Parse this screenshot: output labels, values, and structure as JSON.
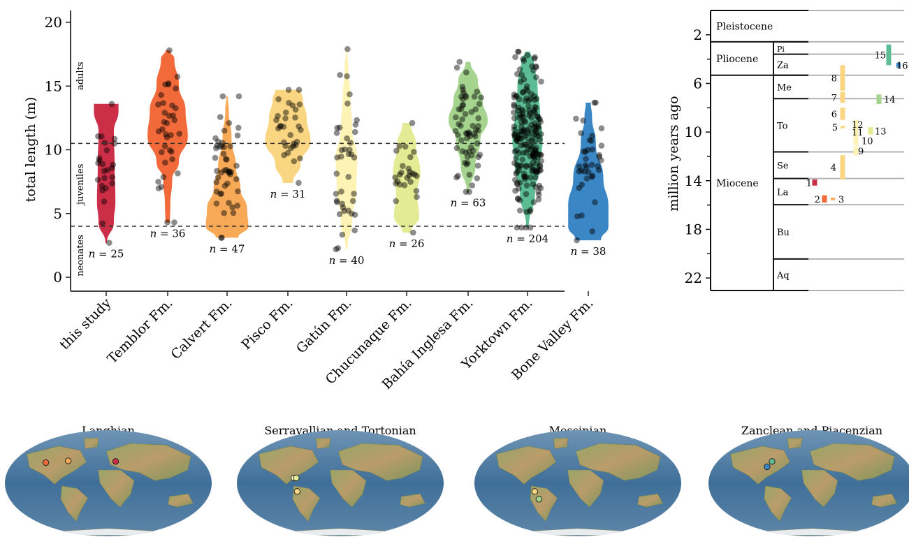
{
  "chart_data": [
    {
      "type": "violin",
      "xlabel": "",
      "ylabel": "total length (m)",
      "ylim": [
        0,
        20
      ],
      "yticks": [
        0,
        5,
        10,
        15,
        20
      ],
      "reference_lines": [
        {
          "value": 4,
          "style": "dashed"
        },
        {
          "value": 10.5,
          "style": "dashed"
        }
      ],
      "zone_labels": [
        "neonates",
        "juveniles",
        "adults"
      ],
      "categories": [
        "this study",
        "Temblor Fm.",
        "Calvert Fm.",
        "Pisco Fm.",
        "Gatún Fm.",
        "Chucunaque Fm.",
        "Bahía Inglesa Fm.",
        "Yorktown Fm.",
        "Bone Valley Fm."
      ],
      "series": [
        {
          "category": "this study",
          "n_label": "n = 25",
          "n": 25,
          "min": 2.7,
          "max": 13.6,
          "color": "#cc2e47"
        },
        {
          "category": "Temblor Fm.",
          "n_label": "n = 36",
          "n": 36,
          "min": 4.3,
          "max": 17.8,
          "color": "#f26a3a"
        },
        {
          "category": "Calvert Fm.",
          "n_label": "n = 47",
          "n": 47,
          "min": 3.1,
          "max": 14.2,
          "color": "#f7a957"
        },
        {
          "category": "Pisco Fm.",
          "n_label": "n = 31",
          "n": 31,
          "min": 7.4,
          "max": 14.7,
          "color": "#fbd682"
        },
        {
          "category": "Gatún Fm.",
          "n_label": "n = 40",
          "n": 40,
          "min": 2.2,
          "max": 17.9,
          "color": "#fdf3b4"
        },
        {
          "category": "Chucunaque Fm.",
          "n_label": "n = 26",
          "n": 26,
          "min": 3.5,
          "max": 12.1,
          "color": "#e3eb94"
        },
        {
          "category": "Bahía Inglesa Fm.",
          "n_label": "n = 63",
          "n": 63,
          "min": 6.7,
          "max": 16.9,
          "color": "#a5d48e"
        },
        {
          "category": "Yorktown Fm.",
          "n_label": "n = 204",
          "n": 204,
          "min": 3.9,
          "max": 17.7,
          "color": "#5cbc93"
        },
        {
          "category": "Bone Valley Fm.",
          "n_label": "n = 38",
          "n": 38,
          "min": 2.9,
          "max": 13.7,
          "color": "#3b86c5"
        }
      ]
    },
    {
      "type": "timeline",
      "ylabel": "million years ago",
      "ylim": [
        0,
        23
      ],
      "yticks": [
        2,
        6,
        10,
        14,
        18,
        22
      ],
      "epochs": [
        {
          "name": "Pleistocene",
          "from": 0,
          "to": 2.58
        },
        {
          "name": "Pliocene",
          "from": 2.58,
          "to": 5.33
        },
        {
          "name": "Miocene",
          "from": 5.33,
          "to": 23.03
        }
      ],
      "stages": [
        {
          "name": "Pi",
          "from": 2.58,
          "to": 3.6
        },
        {
          "name": "Za",
          "from": 3.6,
          "to": 5.33
        },
        {
          "name": "Me",
          "from": 5.33,
          "to": 7.25
        },
        {
          "name": "To",
          "from": 7.25,
          "to": 11.63
        },
        {
          "name": "Se",
          "from": 11.63,
          "to": 13.82
        },
        {
          "name": "La",
          "from": 13.82,
          "to": 15.97
        },
        {
          "name": "Bu",
          "from": 15.97,
          "to": 20.44
        },
        {
          "name": "Aq",
          "from": 20.44,
          "to": 23.03
        }
      ],
      "ranges": [
        {
          "label": "1",
          "from": 13.9,
          "to": 14.4,
          "color": "#cc2e47"
        },
        {
          "label": "2",
          "from": 15.2,
          "to": 15.8,
          "color": "#f26a3a"
        },
        {
          "label": "3",
          "from": 15.4,
          "to": 15.6,
          "color": "#f7a957"
        },
        {
          "label": "4",
          "from": 11.9,
          "to": 13.9,
          "color": "#fbd682"
        },
        {
          "label": "5",
          "from": 9.5,
          "to": 9.7,
          "color": "#fbd682"
        },
        {
          "label": "6",
          "from": 8.0,
          "to": 9.0,
          "color": "#fbd682"
        },
        {
          "label": "7",
          "from": 6.7,
          "to": 7.6,
          "color": "#fbd682"
        },
        {
          "label": "8",
          "from": 4.5,
          "to": 6.6,
          "color": "#fbd682"
        },
        {
          "label": "9",
          "from": 11.2,
          "to": 11.9,
          "color": "#fdf3b4"
        },
        {
          "label": "10",
          "from": 10.3,
          "to": 11.1,
          "color": "#fdf3b4"
        },
        {
          "label": "11",
          "from": 9.7,
          "to": 10.3,
          "color": "#fdf3b4"
        },
        {
          "label": "12",
          "from": 9.0,
          "to": 9.7,
          "color": "#fdf3b4"
        },
        {
          "label": "13",
          "from": 9.6,
          "to": 10.2,
          "color": "#e3eb94"
        },
        {
          "label": "14",
          "from": 6.9,
          "to": 7.7,
          "color": "#a5d48e"
        },
        {
          "label": "15",
          "from": 2.8,
          "to": 4.5,
          "color": "#5cbc93"
        },
        {
          "label": "16",
          "from": 4.3,
          "to": 4.7,
          "color": "#3b86c5"
        }
      ]
    }
  ],
  "maps": [
    {
      "title": "Langhian",
      "sites": [
        {
          "lon": -118,
          "lat": 35,
          "color": "#f26a3a"
        },
        {
          "lon": -77,
          "lat": 38,
          "color": "#f7a957"
        },
        {
          "lon": 14,
          "lat": 37,
          "color": "#cc2e47"
        }
      ]
    },
    {
      "title": "Serravallian and Tortonian",
      "sites": [
        {
          "lon": -81,
          "lat": 9,
          "color": "#fdf3b4"
        },
        {
          "lon": -77,
          "lat": 9,
          "color": "#e3eb94"
        },
        {
          "lon": -76,
          "lat": -14,
          "color": "#fbd682"
        }
      ]
    },
    {
      "title": "Messinian",
      "sites": [
        {
          "lon": -76,
          "lat": -14,
          "color": "#fbd682"
        },
        {
          "lon": -71,
          "lat": -27,
          "color": "#a5d48e"
        }
      ]
    },
    {
      "title": "Zanclean and Piacenzian",
      "sites": [
        {
          "lon": -82,
          "lat": 28,
          "color": "#3b86c5"
        },
        {
          "lon": -76,
          "lat": 37,
          "color": "#5cbc93"
        }
      ]
    }
  ]
}
